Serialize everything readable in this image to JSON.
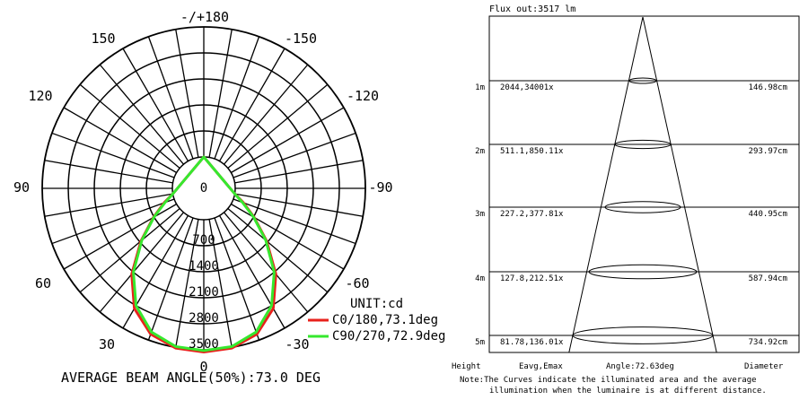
{
  "chart_data": [
    {
      "type": "polar",
      "title": "",
      "unit_label": "UNIT:cd",
      "caption": "AVERAGE BEAM ANGLE(50%):73.0 DEG",
      "angle_labels": [
        "-/+180",
        "150",
        "120",
        "90",
        "60",
        "30",
        "0",
        "-30",
        "-60",
        "-90",
        "-120",
        "-150"
      ],
      "ring_values": [
        700,
        1400,
        2100,
        2800,
        3500
      ],
      "ring_labels": [
        "0",
        "700",
        "1400",
        "2100",
        "2800",
        "3500"
      ],
      "rmax": 3500,
      "grid": true,
      "legend_position": "bottom-right",
      "series": [
        {
          "name": "C0/180,73.1deg",
          "color": "#e8211c",
          "points": [
            [
              -180,
              0
            ],
            [
              -80,
              0
            ],
            [
              -70,
              290
            ],
            [
              -60,
              720
            ],
            [
              -50,
              1360
            ],
            [
              -40,
              2170
            ],
            [
              -30,
              2890
            ],
            [
              -20,
              3330
            ],
            [
              -10,
              3520
            ],
            [
              0,
              3560
            ],
            [
              10,
              3520
            ],
            [
              20,
              3330
            ],
            [
              30,
              2890
            ],
            [
              40,
              2170
            ],
            [
              50,
              1360
            ],
            [
              60,
              720
            ],
            [
              70,
              290
            ],
            [
              80,
              0
            ],
            [
              180,
              0
            ]
          ]
        },
        {
          "name": "C90/270,72.9deg",
          "color": "#36e82e",
          "points": [
            [
              -180,
              0
            ],
            [
              -80,
              0
            ],
            [
              -70,
              260
            ],
            [
              -60,
              700
            ],
            [
              -50,
              1330
            ],
            [
              -40,
              2100
            ],
            [
              -30,
              2800
            ],
            [
              -20,
              3270
            ],
            [
              -10,
              3480
            ],
            [
              0,
              3520
            ],
            [
              10,
              3480
            ],
            [
              20,
              3270
            ],
            [
              30,
              2800
            ],
            [
              40,
              2100
            ],
            [
              50,
              1330
            ],
            [
              60,
              700
            ],
            [
              70,
              260
            ],
            [
              80,
              0
            ],
            [
              180,
              0
            ]
          ]
        }
      ]
    },
    {
      "type": "table",
      "title": "Flux out:3517 lm",
      "header": {
        "height": "Height",
        "eavg": "Eavg,Emax",
        "angle": "Angle:72.63deg",
        "diameter": "Diameter"
      },
      "note_line1": "Note:The Curves indicate the illuminated area and the average",
      "note_line2": "illumination when the luminaire is at different distance.",
      "rows": [
        {
          "height": "1m",
          "eavg_emax": "2044,34001x",
          "diameter": "146.98cm"
        },
        {
          "height": "2m",
          "eavg_emax": "511.1,850.11x",
          "diameter": "293.97cm"
        },
        {
          "height": "3m",
          "eavg_emax": "227.2,377.81x",
          "diameter": "440.95cm"
        },
        {
          "height": "4m",
          "eavg_emax": "127.8,212.51x",
          "diameter": "587.94cm"
        },
        {
          "height": "5m",
          "eavg_emax": "81.78,136.01x",
          "diameter": "734.92cm"
        }
      ]
    }
  ]
}
